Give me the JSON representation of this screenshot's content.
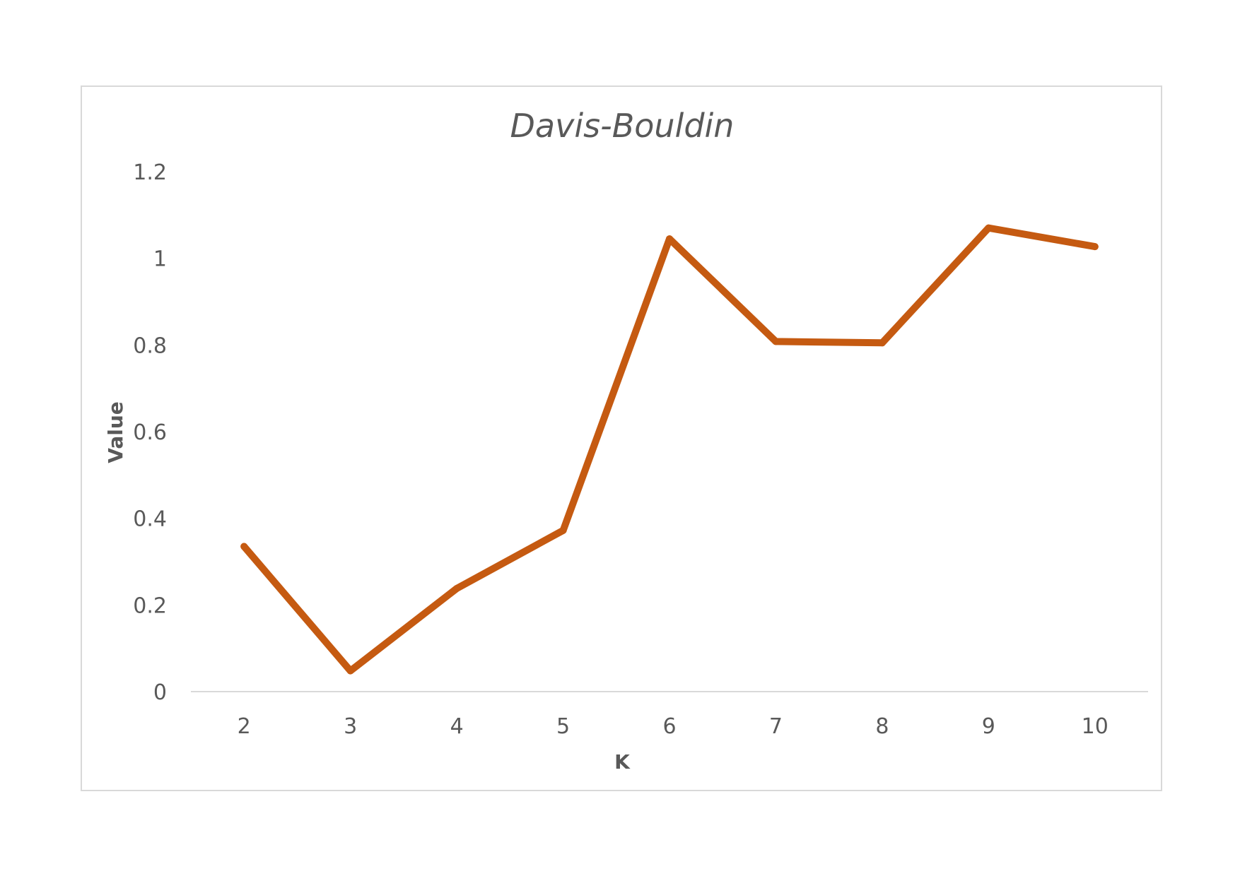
{
  "chart_data": {
    "type": "line",
    "title": "Davis-Bouldin",
    "xlabel": "K",
    "ylabel": "Value",
    "categories": [
      "2",
      "3",
      "4",
      "5",
      "6",
      "7",
      "8",
      "9",
      "10"
    ],
    "y_ticks": [
      "0",
      "0.2",
      "0.4",
      "0.6",
      "0.8",
      "1",
      "1.2"
    ],
    "ylim": [
      0,
      1.2
    ],
    "grid": false,
    "legend": "none",
    "series": [
      {
        "values": [
          0.335,
          0.048,
          0.238,
          0.372,
          1.045,
          0.808,
          0.805,
          1.07,
          1.027
        ],
        "color": "#c55a11"
      }
    ],
    "axis_line_color": "#d9d9d9",
    "text_color": "#595959"
  }
}
